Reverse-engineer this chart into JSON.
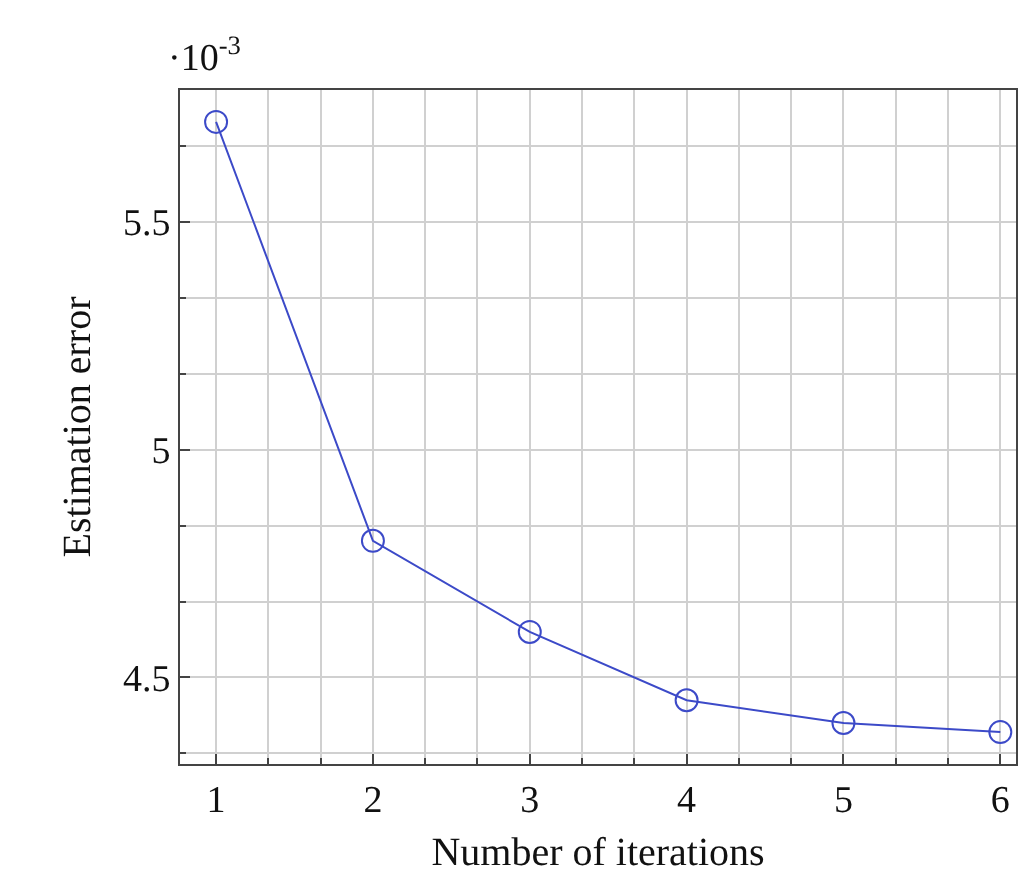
{
  "chart_data": {
    "type": "line",
    "xlabel": "Number of iterations",
    "ylabel": "Estimation error",
    "x": [
      1,
      2,
      3,
      4,
      5,
      6
    ],
    "series": [
      {
        "color": "#3c4ac8",
        "values": [
          5.72,
          4.8,
          4.6,
          4.45,
          4.4,
          4.38
        ]
      }
    ],
    "xlim": [
      0.77,
      6.1
    ],
    "xticks": [
      1,
      2,
      3,
      4,
      5,
      6
    ],
    "ylim": [
      4.31,
      5.79
    ],
    "yticks": [
      4.5,
      5,
      5.5
    ],
    "annotations": [
      "·10$^{-3}$"
    ],
    "grid": true,
    "marker": "circle",
    "line_style": "solid"
  }
}
